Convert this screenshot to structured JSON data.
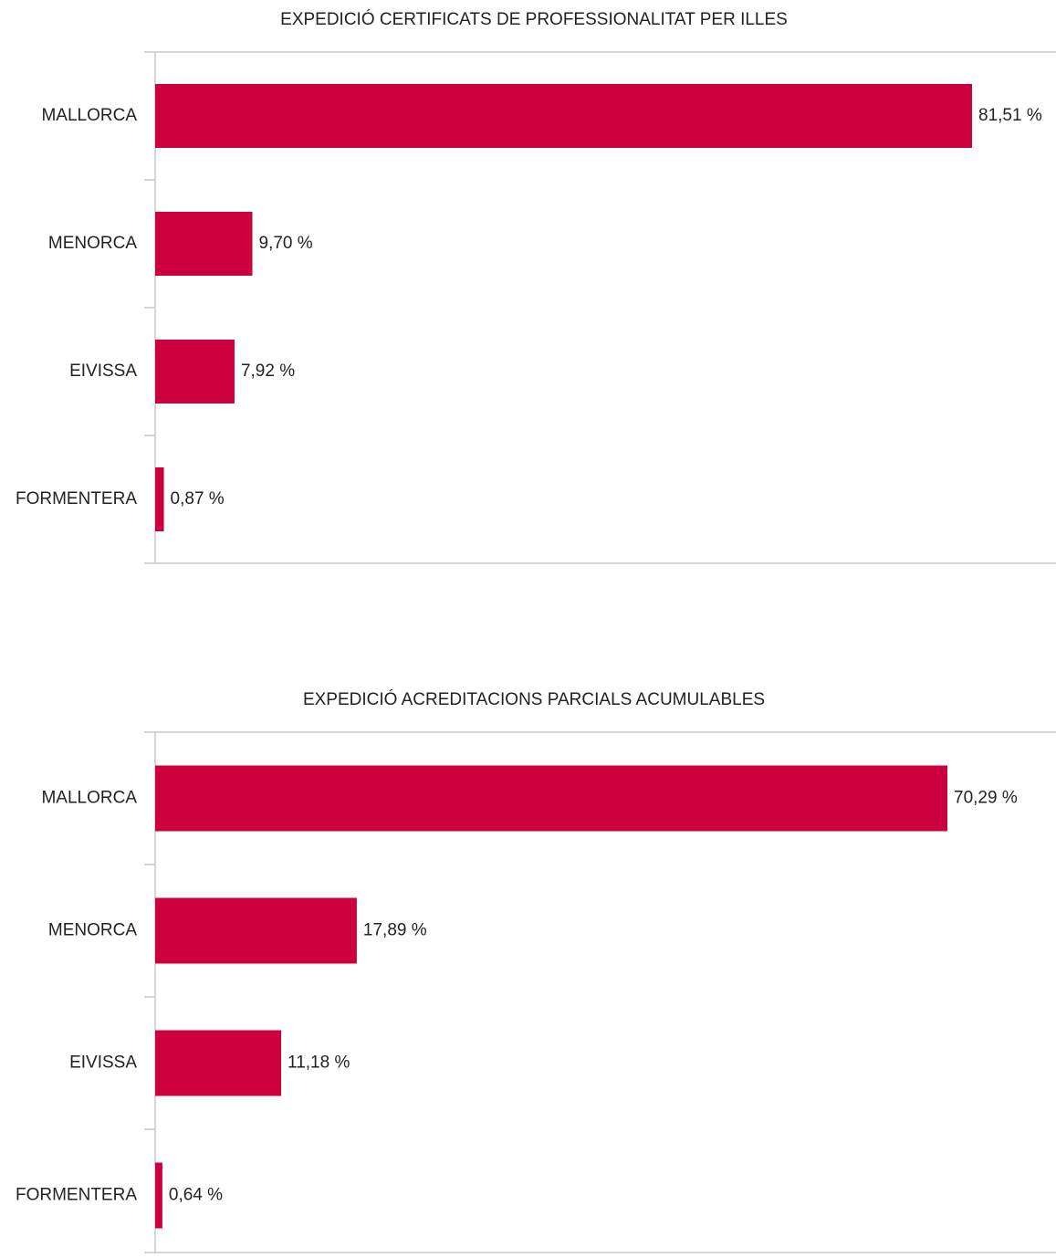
{
  "chart_data": [
    {
      "type": "bar",
      "orientation": "horizontal",
      "title": "EXPEDICIÓ CERTIFICATS DE PROFESSIONALITAT PER ILLES",
      "categories": [
        "MALLORCA",
        "MENORCA",
        "EIVISSA",
        "FORMENTERA"
      ],
      "values": [
        81.51,
        9.7,
        7.92,
        0.87
      ],
      "value_labels": [
        "81,51 %",
        "9,70 %",
        "7,92 %",
        "0,87 %"
      ],
      "color": "#cc003d"
    },
    {
      "type": "bar",
      "orientation": "horizontal",
      "title": "EXPEDICIÓ ACREDITACIONS PARCIALS ACUMULABLES",
      "categories": [
        "MALLORCA",
        "MENORCA",
        "EIVISSA",
        "FORMENTERA"
      ],
      "values": [
        70.29,
        17.89,
        11.18,
        0.64
      ],
      "value_labels": [
        "70,29 %",
        "17,89 %",
        "11,18 %",
        "0,64 %"
      ],
      "color": "#cc003d"
    }
  ]
}
